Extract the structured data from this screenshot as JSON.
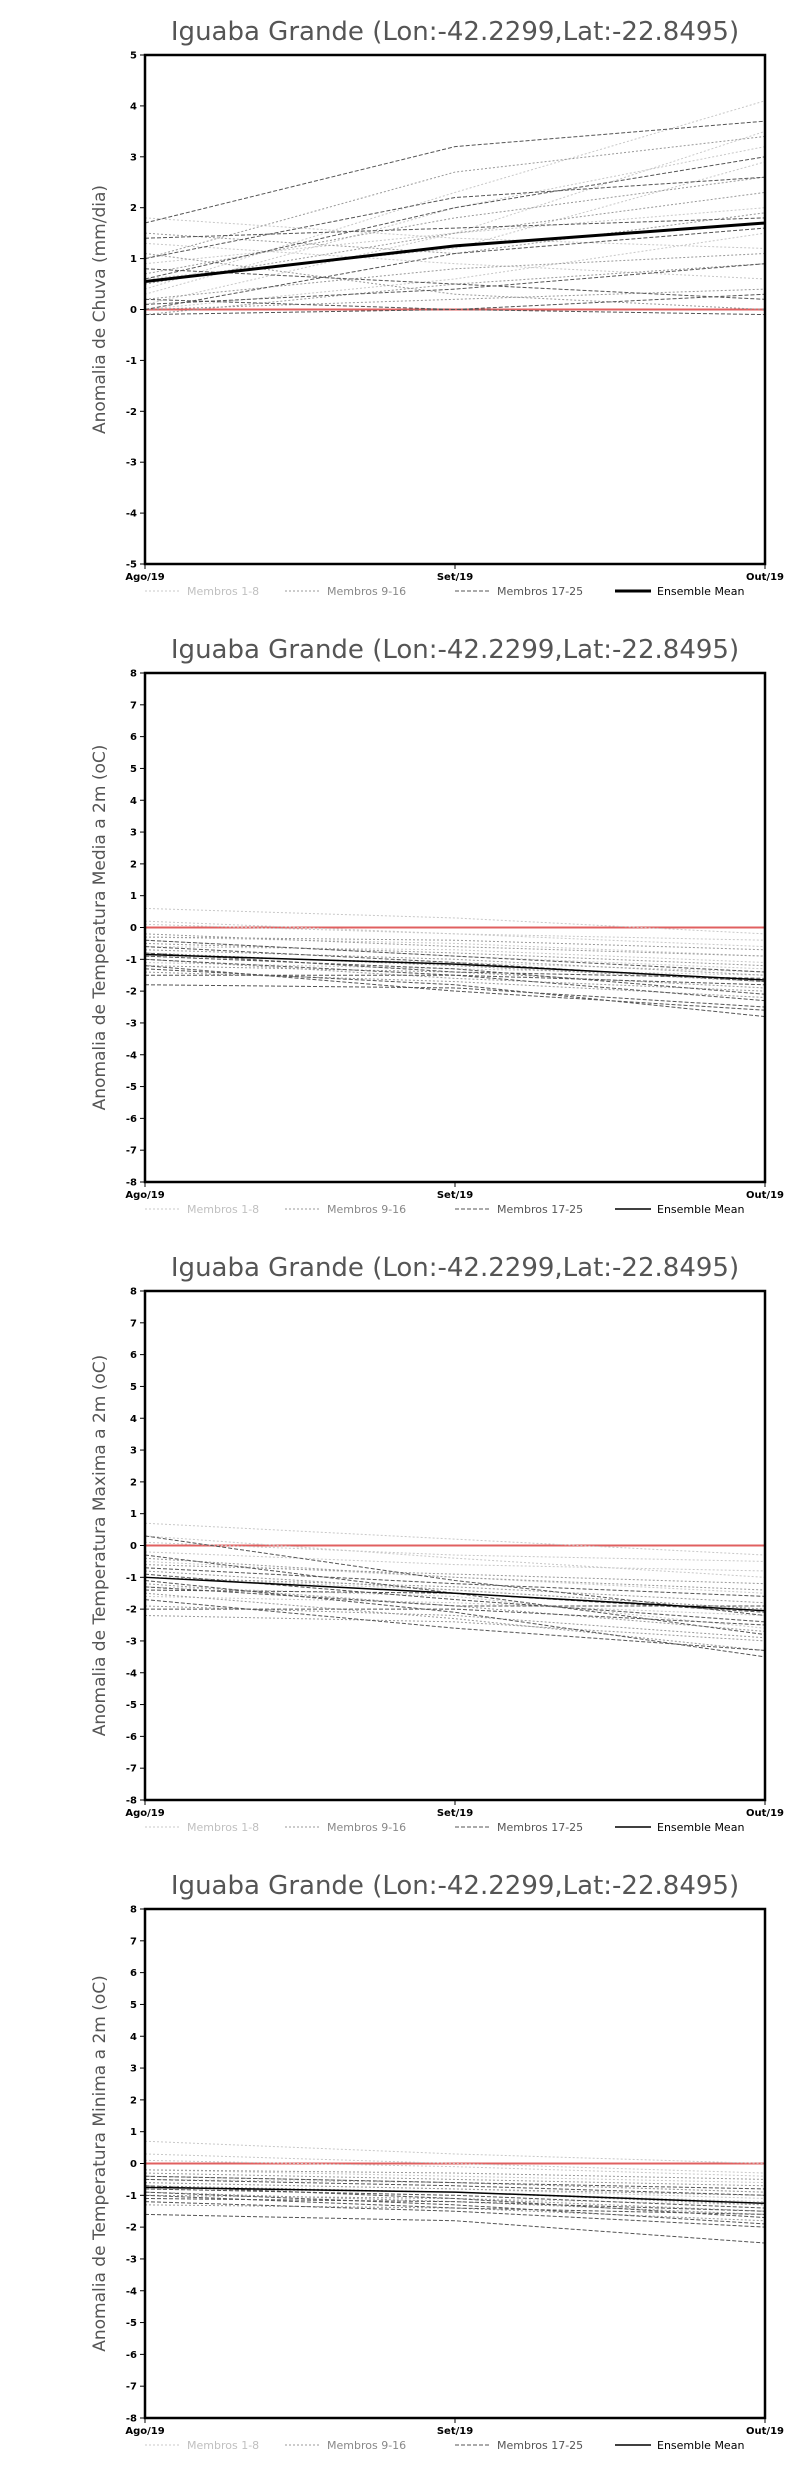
{
  "chart_data": [
    {
      "type": "line",
      "title": "Iguaba Grande (Lon:-42.2299,Lat:-22.8495)",
      "ylabel": "Anomalia de Chuva (mm/dia)",
      "x": [
        "Ago/19",
        "Set/19",
        "Out/19"
      ],
      "ylim": [
        -5,
        5
      ],
      "yticks": [
        -5,
        -4,
        -3,
        -2,
        -1,
        0,
        1,
        2,
        3,
        4,
        5
      ],
      "mean_width": 3,
      "reference": {
        "name": "zero",
        "color": "#e06060",
        "value": 0
      },
      "series": [
        {
          "group": 1,
          "values": [
            0.9,
            1.5,
            2.0
          ]
        },
        {
          "group": 1,
          "values": [
            0.4,
            2.3,
            4.1
          ]
        },
        {
          "group": 1,
          "values": [
            0.1,
            1.5,
            3.5
          ]
        },
        {
          "group": 1,
          "values": [
            1.8,
            1.4,
            1.2
          ]
        },
        {
          "group": 1,
          "values": [
            0.6,
            1.2,
            2.9
          ]
        },
        {
          "group": 1,
          "values": [
            0.3,
            2.0,
            3.2
          ]
        },
        {
          "group": 1,
          "values": [
            1.3,
            0.9,
            0.6
          ]
        },
        {
          "group": 1,
          "values": [
            0.0,
            0.6,
            1.5
          ]
        },
        {
          "group": 2,
          "values": [
            1.0,
            2.7,
            3.4
          ]
        },
        {
          "group": 2,
          "values": [
            0.5,
            1.5,
            2.3
          ]
        },
        {
          "group": 2,
          "values": [
            1.5,
            1.1,
            1.9
          ]
        },
        {
          "group": 2,
          "values": [
            0.2,
            0.8,
            1.1
          ]
        },
        {
          "group": 2,
          "values": [
            -0.1,
            0.5,
            0.9
          ]
        },
        {
          "group": 2,
          "values": [
            1.1,
            0.3,
            0.0
          ]
        },
        {
          "group": 2,
          "values": [
            0.7,
            1.8,
            2.6
          ]
        },
        {
          "group": 2,
          "values": [
            0.0,
            0.2,
            0.4
          ]
        },
        {
          "group": 3,
          "values": [
            1.7,
            3.2,
            3.7
          ]
        },
        {
          "group": 3,
          "values": [
            1.0,
            2.2,
            2.6
          ]
        },
        {
          "group": 3,
          "values": [
            0.6,
            2.0,
            3.0
          ]
        },
        {
          "group": 3,
          "values": [
            1.4,
            1.6,
            1.8
          ]
        },
        {
          "group": 3,
          "values": [
            0.2,
            0.0,
            0.3
          ]
        },
        {
          "group": 3,
          "values": [
            -0.1,
            0.0,
            -0.1
          ]
        },
        {
          "group": 3,
          "values": [
            0.8,
            0.5,
            0.2
          ]
        },
        {
          "group": 3,
          "values": [
            0.0,
            1.1,
            1.6
          ]
        },
        {
          "group": 3,
          "values": [
            0.1,
            0.4,
            0.9
          ]
        },
        {
          "group": "mean",
          "values": [
            0.55,
            1.25,
            1.7
          ]
        }
      ]
    },
    {
      "type": "line",
      "title": "Iguaba Grande (Lon:-42.2299,Lat:-22.8495)",
      "ylabel": "Anomalia de Temperatura Media a 2m (oC)",
      "x": [
        "Ago/19",
        "Set/19",
        "Out/19"
      ],
      "ylim": [
        -8,
        8
      ],
      "yticks": [
        -8,
        -7,
        -6,
        -5,
        -4,
        -3,
        -2,
        -1,
        0,
        1,
        2,
        3,
        4,
        5,
        6,
        7,
        8
      ],
      "mean_width": 1.5,
      "reference": {
        "name": "zero",
        "color": "#e06060",
        "value": 0
      },
      "series": [
        {
          "group": 1,
          "values": [
            0.6,
            0.3,
            -0.2
          ]
        },
        {
          "group": 1,
          "values": [
            0.2,
            -0.2,
            -0.6
          ]
        },
        {
          "group": 1,
          "values": [
            -0.3,
            -0.5,
            -0.9
          ]
        },
        {
          "group": 1,
          "values": [
            -0.6,
            -0.7,
            -1.1
          ]
        },
        {
          "group": 1,
          "values": [
            -0.9,
            -1.1,
            -1.4
          ]
        },
        {
          "group": 1,
          "values": [
            0.1,
            -0.2,
            -0.4
          ]
        },
        {
          "group": 1,
          "values": [
            -0.4,
            -0.9,
            -1.3
          ]
        },
        {
          "group": 1,
          "values": [
            -1.1,
            -1.3,
            -1.5
          ]
        },
        {
          "group": 2,
          "values": [
            -0.5,
            -0.8,
            -1.2
          ]
        },
        {
          "group": 2,
          "values": [
            -0.8,
            -1.2,
            -1.7
          ]
        },
        {
          "group": 2,
          "values": [
            -1.2,
            -1.4,
            -1.9
          ]
        },
        {
          "group": 2,
          "values": [
            -0.2,
            -0.6,
            -0.9
          ]
        },
        {
          "group": 2,
          "values": [
            -1.4,
            -1.7,
            -2.2
          ]
        },
        {
          "group": 2,
          "values": [
            -0.7,
            -1.0,
            -1.5
          ]
        },
        {
          "group": 2,
          "values": [
            -1.0,
            -1.6,
            -2.0
          ]
        },
        {
          "group": 2,
          "values": [
            -0.3,
            -0.4,
            -0.7
          ]
        },
        {
          "group": 3,
          "values": [
            -1.8,
            -1.9,
            -2.5
          ]
        },
        {
          "group": 3,
          "values": [
            -1.3,
            -1.8,
            -2.8
          ]
        },
        {
          "group": 3,
          "values": [
            -0.9,
            -1.3,
            -2.1
          ]
        },
        {
          "group": 3,
          "values": [
            -0.6,
            -1.1,
            -1.7
          ]
        },
        {
          "group": 3,
          "values": [
            -1.0,
            -1.5,
            -2.3
          ]
        },
        {
          "group": 3,
          "values": [
            -1.5,
            -1.5,
            -1.8
          ]
        },
        {
          "group": 3,
          "values": [
            -0.4,
            -0.9,
            -1.4
          ]
        },
        {
          "group": 3,
          "values": [
            -1.2,
            -2.0,
            -2.6
          ]
        },
        {
          "group": 3,
          "values": [
            -0.8,
            -1.4,
            -1.6
          ]
        },
        {
          "group": "mean",
          "values": [
            -0.85,
            -1.15,
            -1.65
          ]
        }
      ]
    },
    {
      "type": "line",
      "title": "Iguaba Grande (Lon:-42.2299,Lat:-22.8495)",
      "ylabel": "Anomalia de Temperatura Maxima a 2m (oC)",
      "x": [
        "Ago/19",
        "Set/19",
        "Out/19"
      ],
      "ylim": [
        -8,
        8
      ],
      "yticks": [
        -8,
        -7,
        -6,
        -5,
        -4,
        -3,
        -2,
        -1,
        0,
        1,
        2,
        3,
        4,
        5,
        6,
        7,
        8
      ],
      "mean_width": 1.5,
      "reference": {
        "name": "zero",
        "color": "#e06060",
        "value": 0
      },
      "series": [
        {
          "group": 1,
          "values": [
            0.7,
            0.2,
            -0.3
          ]
        },
        {
          "group": 1,
          "values": [
            0.3,
            -0.4,
            -1.0
          ]
        },
        {
          "group": 1,
          "values": [
            -0.5,
            -1.0,
            -1.5
          ]
        },
        {
          "group": 1,
          "values": [
            -1.0,
            -1.4,
            -2.0
          ]
        },
        {
          "group": 1,
          "values": [
            -1.6,
            -1.8,
            -2.2
          ]
        },
        {
          "group": 1,
          "values": [
            -0.2,
            -0.6,
            -0.8
          ]
        },
        {
          "group": 1,
          "values": [
            -1.3,
            -1.6,
            -2.6
          ]
        },
        {
          "group": 1,
          "values": [
            0.1,
            -0.3,
            -0.5
          ]
        },
        {
          "group": 2,
          "values": [
            -0.8,
            -1.4,
            -2.0
          ]
        },
        {
          "group": 2,
          "values": [
            -1.2,
            -1.9,
            -2.7
          ]
        },
        {
          "group": 2,
          "values": [
            -1.9,
            -2.2,
            -2.9
          ]
        },
        {
          "group": 2,
          "values": [
            -0.4,
            -1.0,
            -1.4
          ]
        },
        {
          "group": 2,
          "values": [
            -2.2,
            -2.4,
            -3.0
          ]
        },
        {
          "group": 2,
          "values": [
            -1.0,
            -1.3,
            -1.8
          ]
        },
        {
          "group": 2,
          "values": [
            -1.5,
            -2.3,
            -3.3
          ]
        },
        {
          "group": 2,
          "values": [
            -0.6,
            -0.9,
            -1.2
          ]
        },
        {
          "group": 3,
          "values": [
            -1.1,
            -2.1,
            -3.5
          ]
        },
        {
          "group": 3,
          "values": [
            0.3,
            -1.1,
            -2.2
          ]
        },
        {
          "group": 3,
          "values": [
            -0.9,
            -1.7,
            -2.4
          ]
        },
        {
          "group": 3,
          "values": [
            -1.7,
            -2.6,
            -3.3
          ]
        },
        {
          "group": 3,
          "values": [
            -0.7,
            -1.2,
            -1.6
          ]
        },
        {
          "group": 3,
          "values": [
            -1.4,
            -1.5,
            -2.1
          ]
        },
        {
          "group": 3,
          "values": [
            -2.0,
            -2.0,
            -2.5
          ]
        },
        {
          "group": 3,
          "values": [
            -0.3,
            -1.5,
            -2.8
          ]
        },
        {
          "group": 3,
          "values": [
            -1.3,
            -1.9,
            -1.9
          ]
        },
        {
          "group": "mean",
          "values": [
            -1.0,
            -1.5,
            -2.05
          ]
        }
      ]
    },
    {
      "type": "line",
      "title": "Iguaba Grande (Lon:-42.2299,Lat:-22.8495)",
      "ylabel": "Anomalia de Temperatura Minima a 2m (oC)",
      "x": [
        "Ago/19",
        "Set/19",
        "Out/19"
      ],
      "ylim": [
        -8,
        8
      ],
      "yticks": [
        -8,
        -7,
        -6,
        -5,
        -4,
        -3,
        -2,
        -1,
        0,
        1,
        2,
        3,
        4,
        5,
        6,
        7,
        8
      ],
      "mean_width": 1.5,
      "reference": {
        "name": "zero",
        "color": "#e06060",
        "value": 0
      },
      "series": [
        {
          "group": 1,
          "values": [
            0.7,
            0.3,
            0.0
          ]
        },
        {
          "group": 1,
          "values": [
            0.3,
            0.0,
            -0.3
          ]
        },
        {
          "group": 1,
          "values": [
            -0.2,
            -0.4,
            -0.6
          ]
        },
        {
          "group": 1,
          "values": [
            -0.5,
            -0.6,
            -0.9
          ]
        },
        {
          "group": 1,
          "values": [
            -0.8,
            -0.9,
            -1.2
          ]
        },
        {
          "group": 1,
          "values": [
            0.1,
            -0.1,
            -0.4
          ]
        },
        {
          "group": 1,
          "values": [
            -0.6,
            -0.8,
            -1.1
          ]
        },
        {
          "group": 1,
          "values": [
            -1.0,
            -1.1,
            -1.3
          ]
        },
        {
          "group": 2,
          "values": [
            -0.4,
            -0.6,
            -0.9
          ]
        },
        {
          "group": 2,
          "values": [
            -0.7,
            -0.9,
            -1.3
          ]
        },
        {
          "group": 2,
          "values": [
            -1.0,
            -1.1,
            -1.5
          ]
        },
        {
          "group": 2,
          "values": [
            -0.3,
            -0.5,
            -0.7
          ]
        },
        {
          "group": 2,
          "values": [
            -1.3,
            -1.4,
            -1.8
          ]
        },
        {
          "group": 2,
          "values": [
            -0.6,
            -0.8,
            -1.0
          ]
        },
        {
          "group": 2,
          "values": [
            -0.9,
            -1.2,
            -1.6
          ]
        },
        {
          "group": 2,
          "values": [
            -0.2,
            -0.3,
            -0.5
          ]
        },
        {
          "group": 3,
          "values": [
            -1.6,
            -1.8,
            -2.5
          ]
        },
        {
          "group": 3,
          "values": [
            -1.2,
            -1.5,
            -2.0
          ]
        },
        {
          "group": 3,
          "values": [
            -0.8,
            -1.0,
            -1.4
          ]
        },
        {
          "group": 3,
          "values": [
            -0.5,
            -0.7,
            -1.0
          ]
        },
        {
          "group": 3,
          "values": [
            -0.9,
            -1.3,
            -1.9
          ]
        },
        {
          "group": 3,
          "values": [
            -1.1,
            -1.2,
            -1.5
          ]
        },
        {
          "group": 3,
          "values": [
            -0.7,
            -1.1,
            -1.7
          ]
        },
        {
          "group": 3,
          "values": [
            -0.4,
            -0.6,
            -0.8
          ]
        },
        {
          "group": 3,
          "values": [
            -1.0,
            -1.4,
            -1.6
          ]
        },
        {
          "group": "mean",
          "values": [
            -0.75,
            -0.9,
            -1.25
          ]
        }
      ]
    }
  ],
  "legend": [
    {
      "key": "g1",
      "label": "Membros 1-8",
      "color": "#c8c8c8",
      "text_color": "#c0c0c0",
      "style": "dotted"
    },
    {
      "key": "g2",
      "label": "Membros 9-16",
      "color": "#999999",
      "text_color": "#888888",
      "style": "dotted"
    },
    {
      "key": "g3",
      "label": "Membros 17-25",
      "color": "#555555",
      "text_color": "#555555",
      "style": "dashed"
    },
    {
      "key": "mean",
      "label": "Ensemble Mean",
      "color": "#000000",
      "text_color": "#000000",
      "style": "solid"
    }
  ],
  "legend_placement": "bottom",
  "grid": false
}
